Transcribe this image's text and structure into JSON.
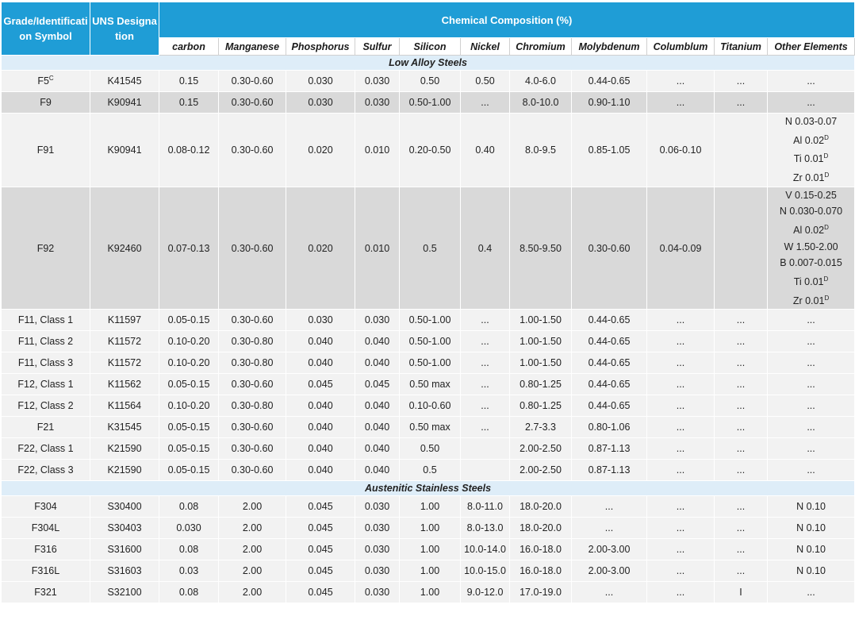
{
  "table": {
    "headers": {
      "grade": "Grade/Identification Symbol",
      "uns": "UNS Designation",
      "composition": "Chemical Composition (%)",
      "elements": [
        "carbon",
        "Manganese",
        "Phosphorus",
        "Sulfur",
        "Silicon",
        "Nickel",
        "Chromium",
        "Molybdenum",
        "Columblum",
        "Titanium",
        "Other Elements"
      ]
    },
    "sections": [
      {
        "title": "Low Alloy Steels",
        "rows": [
          {
            "grade": {
              "text": "F5",
              "sup": "C"
            },
            "uns": "K41545",
            "values": [
              "0.15",
              "0.30-0.60",
              "0.030",
              "0.030",
              "0.50",
              "0.50",
              "4.0-6.0",
              "0.44-0.65",
              "...",
              "..."
            ],
            "other": [
              "..."
            ]
          },
          {
            "grade": "F9",
            "uns": "K90941",
            "values": [
              "0.15",
              "0.30-0.60",
              "0.030",
              "0.030",
              "0.50-1.00",
              "...",
              "8.0-10.0",
              "0.90-1.10",
              "...",
              "..."
            ],
            "other": [
              "..."
            ]
          },
          {
            "grade": "F91",
            "uns": "K90941",
            "values": [
              "0.08-0.12",
              "0.30-0.60",
              "0.020",
              "0.010",
              "0.20-0.50",
              "0.40",
              "8.0-9.5",
              "0.85-1.05",
              "0.06-0.10",
              null
            ],
            "other": [
              "N 0.03-0.07",
              {
                "text": "Al 0.02",
                "sup": "D"
              },
              {
                "text": "Ti 0.01",
                "sup": "D"
              },
              {
                "text": "Zr 0.01",
                "sup": "D"
              }
            ]
          },
          {
            "grade": "F92",
            "uns": "K92460",
            "values": [
              "0.07-0.13",
              "0.30-0.60",
              "0.020",
              "0.010",
              "0.5",
              "0.4",
              "8.50-9.50",
              "0.30-0.60",
              "0.04-0.09",
              null
            ],
            "other": [
              "V 0.15-0.25",
              "N 0.030-0.070",
              {
                "text": "Al 0.02",
                "sup": "D"
              },
              "W 1.50-2.00",
              "B 0.007-0.015",
              {
                "text": "Ti 0.01",
                "sup": "D"
              },
              {
                "text": "Zr 0.01",
                "sup": "D"
              }
            ]
          },
          {
            "grade": "F11, Class 1",
            "uns": "K11597",
            "values": [
              "0.05-0.15",
              "0.30-0.60",
              "0.030",
              "0.030",
              "0.50-1.00",
              "...",
              "1.00-1.50",
              "0.44-0.65",
              "...",
              "..."
            ],
            "other": [
              "..."
            ]
          },
          {
            "grade": "F11, Class 2",
            "uns": "K11572",
            "values": [
              "0.10-0.20",
              "0.30-0.80",
              "0.040",
              "0.040",
              "0.50-1.00",
              "...",
              "1.00-1.50",
              "0.44-0.65",
              "...",
              "..."
            ],
            "other": [
              "..."
            ]
          },
          {
            "grade": "F11, Class 3",
            "uns": "K11572",
            "values": [
              "0.10-0.20",
              "0.30-0.80",
              "0.040",
              "0.040",
              "0.50-1.00",
              "...",
              "1.00-1.50",
              "0.44-0.65",
              "...",
              "..."
            ],
            "other": [
              "..."
            ]
          },
          {
            "grade": "F12, Class 1",
            "uns": "K11562",
            "values": [
              "0.05-0.15",
              "0.30-0.60",
              "0.045",
              "0.045",
              "0.50 max",
              "...",
              "0.80-1.25",
              "0.44-0.65",
              "...",
              "..."
            ],
            "other": [
              "..."
            ]
          },
          {
            "grade": "F12, Class 2",
            "uns": "K11564",
            "values": [
              "0.10-0.20",
              "0.30-0.80",
              "0.040",
              "0.040",
              "0.10-0.60",
              "...",
              "0.80-1.25",
              "0.44-0.65",
              "...",
              "..."
            ],
            "other": [
              "..."
            ]
          },
          {
            "grade": "F21",
            "uns": "K31545",
            "values": [
              "0.05-0.15",
              "0.30-0.60",
              "0.040",
              "0.040",
              "0.50 max",
              "...",
              "2.7-3.3",
              "0.80-1.06",
              "...",
              "..."
            ],
            "other": [
              "..."
            ]
          },
          {
            "grade": "F22, Class 1",
            "uns": "K21590",
            "values": [
              "0.05-0.15",
              "0.30-0.60",
              "0.040",
              "0.040",
              "0.50",
              null,
              "2.00-2.50",
              "0.87-1.13",
              "...",
              "..."
            ],
            "other": [
              "..."
            ]
          },
          {
            "grade": "F22, Class 3",
            "uns": "K21590",
            "values": [
              "0.05-0.15",
              "0.30-0.60",
              "0.040",
              "0.040",
              "0.5",
              null,
              "2.00-2.50",
              "0.87-1.13",
              "...",
              "..."
            ],
            "other": [
              "..."
            ]
          }
        ]
      },
      {
        "title": "Austenitic Stainless Steels",
        "rows": [
          {
            "grade": "F304",
            "uns": "S30400",
            "values": [
              "0.08",
              "2.00",
              "0.045",
              "0.030",
              "1.00",
              "8.0-11.0",
              "18.0-20.0",
              "...",
              "...",
              "..."
            ],
            "other": [
              "N 0.10"
            ]
          },
          {
            "grade": "F304L",
            "uns": "S30403",
            "values": [
              "0.030",
              "2.00",
              "0.045",
              "0.030",
              "1.00",
              "8.0-13.0",
              "18.0-20.0",
              "...",
              "...",
              "..."
            ],
            "other": [
              "N 0.10"
            ]
          },
          {
            "grade": "F316",
            "uns": "S31600",
            "values": [
              "0.08",
              "2.00",
              "0.045",
              "0.030",
              "1.00",
              "10.0-14.0",
              "16.0-18.0",
              "2.00-3.00",
              "...",
              "..."
            ],
            "other": [
              "N 0.10"
            ]
          },
          {
            "grade": "F316L",
            "uns": "S31603",
            "values": [
              "0.03",
              "2.00",
              "0.045",
              "0.030",
              "1.00",
              "10.0-15.0",
              "16.0-18.0",
              "2.00-3.00",
              "...",
              "..."
            ],
            "other": [
              "N 0.10"
            ]
          },
          {
            "grade": "F321",
            "uns": "S32100",
            "values": [
              "0.08",
              "2.00",
              "0.045",
              "0.030",
              "1.00",
              "9.0-12.0",
              "17.0-19.0",
              "...",
              "...",
              "I"
            ],
            "other": [
              "..."
            ]
          }
        ]
      }
    ]
  }
}
